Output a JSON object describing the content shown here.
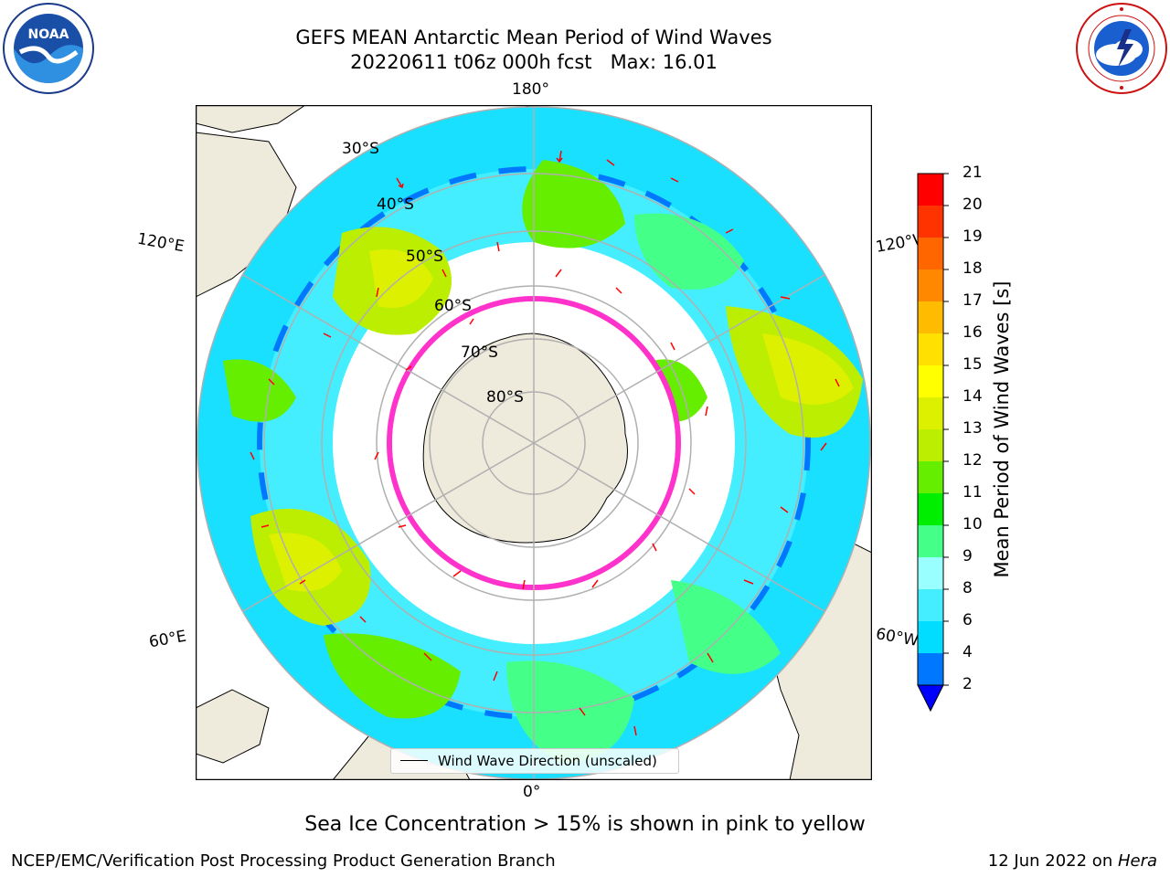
{
  "header": {
    "title": "GEFS MEAN Antarctic Mean Period of Wind Waves",
    "subtitle": "20220611 t06z 000h fcst   Max: 16.01"
  },
  "logos": {
    "left": "noaa-logo",
    "right": "nws-logo",
    "left_text": "NOAA"
  },
  "map": {
    "projection": "south polar stereographic",
    "longitude_labels": {
      "top": "180°",
      "bottom": "0°",
      "left_upper": "120°E",
      "left_lower": "60°E",
      "right_upper": "120°W",
      "right_lower": "60°W"
    },
    "latitude_labels": [
      "30°S",
      "40°S",
      "50°S",
      "60°S",
      "70°S",
      "80°S"
    ],
    "land_color": "#efebdc",
    "ocean_no_data_color": "#ffffff",
    "arrow_color": "#ff0000",
    "sea_ice_colors": [
      "#ff33cc",
      "#ffaa44",
      "#ffee55"
    ]
  },
  "legend": {
    "label": "Wind Wave Direction (unscaled)"
  },
  "colorbar": {
    "label": "Mean Period of Wind Waves [s]",
    "ticks": [
      "2",
      "4",
      "6",
      "8",
      "9",
      "10",
      "11",
      "12",
      "13",
      "14",
      "15",
      "16",
      "17",
      "18",
      "19",
      "20",
      "21"
    ],
    "colors": [
      "#0000ff",
      "#0077ff",
      "#00ddff",
      "#44eeff",
      "#99ffff",
      "#44ff88",
      "#00ee00",
      "#66ee00",
      "#bbee00",
      "#ddf000",
      "#ffff00",
      "#ffe000",
      "#ffbb00",
      "#ff8800",
      "#ff6600",
      "#ff3300",
      "#ff0000"
    ],
    "extend": "min"
  },
  "notes": {
    "ice": "Sea Ice Concentration > 15% is shown in pink to yellow"
  },
  "footer": {
    "left": "NCEP/EMC/Verification Post Processing Product Generation Branch",
    "right_date": "12 Jun 2022 on ",
    "right_host": "Hera"
  }
}
